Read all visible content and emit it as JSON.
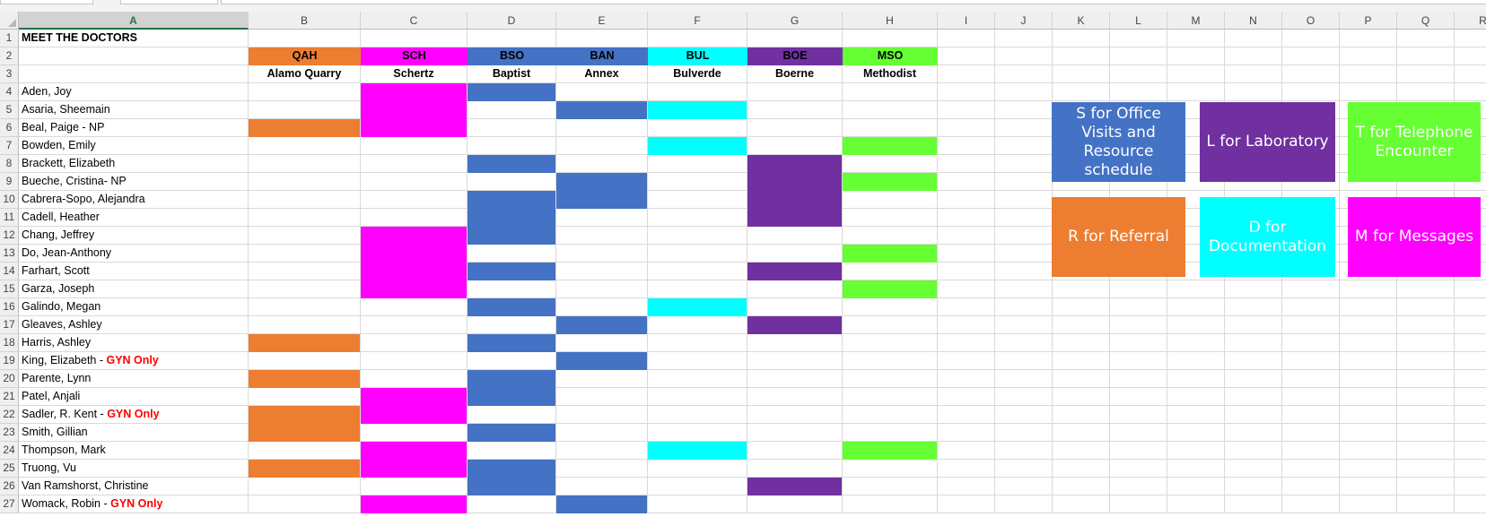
{
  "columns": [
    "A",
    "B",
    "C",
    "D",
    "E",
    "F",
    "G",
    "H",
    "I",
    "J",
    "K",
    "L",
    "M",
    "N",
    "O",
    "P",
    "Q",
    "R"
  ],
  "selected_column": "A",
  "title": "MEET THE DOCTORS",
  "locations": [
    {
      "code": "QAH",
      "name": "Alamo Quarry",
      "color": "#ED7D31"
    },
    {
      "code": "SCH",
      "name": "Schertz",
      "color": "#FF00FF"
    },
    {
      "code": "BSO",
      "name": "Baptist",
      "color": "#4472C4"
    },
    {
      "code": "BAN",
      "name": "Annex",
      "color": "#4472C4"
    },
    {
      "code": "BUL",
      "name": "Bulverde",
      "color": "#00FFFF"
    },
    {
      "code": "BOE",
      "name": "Boerne",
      "color": "#7030A0"
    },
    {
      "code": "MSO",
      "name": "Methodist",
      "color": "#66FF33"
    }
  ],
  "doctors": [
    {
      "name": "Aden, Joy",
      "locations": [
        "SCH",
        "BSO"
      ]
    },
    {
      "name": "Asaria, Sheemain",
      "locations": [
        "SCH",
        "BAN",
        "BUL"
      ]
    },
    {
      "name": "Beal, Paige - NP",
      "locations": [
        "QAH",
        "SCH"
      ]
    },
    {
      "name": "Bowden, Emily",
      "locations": [
        "BUL",
        "MSO"
      ]
    },
    {
      "name": "Brackett, Elizabeth",
      "locations": [
        "BSO",
        "BOE"
      ]
    },
    {
      "name": "Bueche, Cristina- NP",
      "locations": [
        "BAN",
        "BOE",
        "MSO"
      ]
    },
    {
      "name": "Cabrera-Sopo, Alejandra",
      "locations": [
        "BSO",
        "BAN",
        "BOE"
      ]
    },
    {
      "name": "Cadell, Heather",
      "locations": [
        "BSO",
        "BOE"
      ]
    },
    {
      "name": "Chang, Jeffrey",
      "locations": [
        "SCH",
        "BSO"
      ]
    },
    {
      "name": "Do, Jean-Anthony",
      "locations": [
        "SCH",
        "MSO"
      ]
    },
    {
      "name": "Farhart, Scott",
      "locations": [
        "SCH",
        "BSO",
        "BOE"
      ]
    },
    {
      "name": "Garza, Joseph",
      "locations": [
        "SCH",
        "MSO"
      ]
    },
    {
      "name": "Galindo, Megan",
      "locations": [
        "BSO",
        "BUL"
      ]
    },
    {
      "name": "Gleaves, Ashley",
      "locations": [
        "BAN",
        "BOE"
      ]
    },
    {
      "name": "Harris, Ashley",
      "locations": [
        "QAH",
        "BSO"
      ]
    },
    {
      "name": "King, Elizabeth - ",
      "note": "GYN Only",
      "locations": [
        "BAN"
      ]
    },
    {
      "name": "Parente, Lynn",
      "locations": [
        "QAH",
        "BSO"
      ]
    },
    {
      "name": "Patel, Anjali",
      "locations": [
        "SCH",
        "BSO"
      ]
    },
    {
      "name": "Sadler, R. Kent - ",
      "note": "GYN Only",
      "locations": [
        "QAH",
        "SCH"
      ]
    },
    {
      "name": "Smith, Gillian",
      "locations": [
        "QAH",
        "BSO"
      ]
    },
    {
      "name": "Thompson, Mark",
      "locations": [
        "SCH",
        "BUL",
        "MSO"
      ]
    },
    {
      "name": "Truong, Vu",
      "locations": [
        "QAH",
        "SCH",
        "BSO"
      ]
    },
    {
      "name": "Van Ramshorst, Christine",
      "locations": [
        "BSO",
        "BOE"
      ]
    },
    {
      "name": "Womack, Robin - ",
      "note": "GYN Only",
      "locations": [
        "SCH",
        "BAN"
      ]
    }
  ],
  "legend": [
    {
      "label": "S for Office Visits and Resource schedule",
      "color": "#4472C4"
    },
    {
      "label": "L for Laboratory",
      "color": "#7030A0"
    },
    {
      "label": "T for Telephone Encounter",
      "color": "#66FF33"
    },
    {
      "label": "R for Referral",
      "color": "#ED7D31"
    },
    {
      "label": "D for Documentation",
      "color": "#00FFFF"
    },
    {
      "label": "M for Messages",
      "color": "#FF00FF"
    }
  ]
}
